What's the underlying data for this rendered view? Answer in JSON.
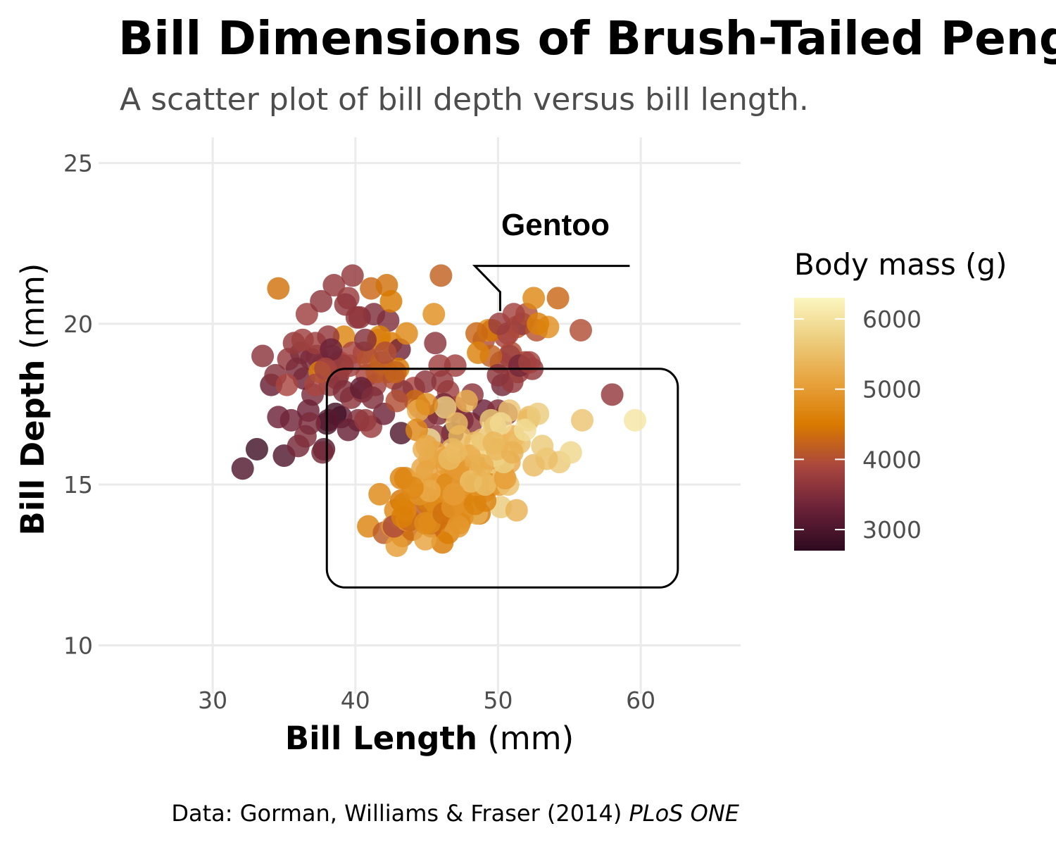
{
  "colors": {
    "background": "#ffffff",
    "grid": "#ebebeb",
    "gradient": [
      "#2d0a1f",
      "#6b2238",
      "#a8453f",
      "#d97a00",
      "#e8a33e",
      "#eccc7c",
      "#fbf6c0"
    ]
  },
  "chart_data": {
    "type": "scatter",
    "title": "Bill Dimensions of Brush-Tailed Peng",
    "subtitle": "A scatter plot of bill depth versus bill length.",
    "xlabel": {
      "bold": "Bill Length",
      "rest": " (mm)"
    },
    "ylabel": {
      "bold": "Bill Depth",
      "rest": " (mm)"
    },
    "xlim": [
      22,
      67
    ],
    "ylim": [
      8.5,
      25.8
    ],
    "xticks": [
      30,
      40,
      50,
      60
    ],
    "yticks": [
      10,
      15,
      20,
      25
    ],
    "grid": true,
    "color_scale": {
      "title": "Body mass (g)",
      "min": 2700,
      "max": 6300,
      "ticks": [
        3000,
        4000,
        5000,
        6000
      ]
    },
    "annotation": {
      "label": "Gentoo",
      "box": {
        "x0": 38,
        "x1": 62.6,
        "y0": 11.8,
        "y1": 18.6
      },
      "leader_x": 50,
      "leader_y": 21.8
    },
    "caption": {
      "text": "Data: Gorman, Williams & Fraser (2014) ",
      "italic": "PLoS ONE"
    },
    "points": [
      [
        32.1,
        15.5,
        3050
      ],
      [
        33.1,
        16.1,
        2900
      ],
      [
        35.0,
        15.9,
        3050
      ],
      [
        36.0,
        16.2,
        3400
      ],
      [
        37.8,
        16.1,
        3100
      ],
      [
        34.6,
        17.1,
        3300
      ],
      [
        35.5,
        17.0,
        3350
      ],
      [
        36.5,
        16.5,
        3500
      ],
      [
        38.0,
        16.9,
        2950
      ],
      [
        39.0,
        17.1,
        3200
      ],
      [
        40.2,
        17.0,
        3500
      ],
      [
        41.1,
        16.8,
        3750
      ],
      [
        42.0,
        17.2,
        3300
      ],
      [
        43.2,
        16.6,
        3050
      ],
      [
        37.0,
        17.8,
        3450
      ],
      [
        38.6,
        17.2,
        2900
      ],
      [
        39.7,
        17.7,
        3600
      ],
      [
        40.5,
        17.9,
        3550
      ],
      [
        41.4,
        18.1,
        3800
      ],
      [
        36.4,
        18.3,
        3300
      ],
      [
        34.1,
        18.1,
        3250
      ],
      [
        35.3,
        18.9,
        3700
      ],
      [
        36.2,
        19.1,
        3500
      ],
      [
        37.3,
        19.0,
        3600
      ],
      [
        38.8,
        18.4,
        3900
      ],
      [
        39.6,
        18.7,
        3800
      ],
      [
        40.6,
        19.1,
        3950
      ],
      [
        41.6,
        19.5,
        4300
      ],
      [
        42.5,
        19.4,
        4500
      ],
      [
        43.1,
        19.2,
        3350
      ],
      [
        34.4,
        18.4,
        3550
      ],
      [
        35.9,
        18.6,
        3450
      ],
      [
        37.7,
        18.7,
        3700
      ],
      [
        38.2,
        18.1,
        3650
      ],
      [
        39.2,
        19.6,
        4650
      ],
      [
        40.8,
        18.4,
        3900
      ],
      [
        42.2,
        18.5,
        4300
      ],
      [
        44.1,
        18.0,
        3900
      ],
      [
        45.0,
        17.1,
        3600
      ],
      [
        45.8,
        17.2,
        3500
      ],
      [
        46.5,
        17.9,
        3800
      ],
      [
        47.0,
        17.4,
        3900
      ],
      [
        48.1,
        16.9,
        3600
      ],
      [
        46.2,
        17.5,
        3400
      ],
      [
        44.5,
        17.4,
        4200
      ],
      [
        33.5,
        19.0,
        3600
      ],
      [
        34.6,
        21.1,
        4400
      ],
      [
        35.7,
        19.4,
        3700
      ],
      [
        36.6,
        20.3,
        3800
      ],
      [
        37.6,
        20.7,
        3650
      ],
      [
        38.5,
        21.2,
        3700
      ],
      [
        39.5,
        20.8,
        3750
      ],
      [
        40.3,
        20.2,
        3650
      ],
      [
        41.3,
        20.3,
        3500
      ],
      [
        42.3,
        20.1,
        3500
      ],
      [
        39.8,
        21.5,
        3700
      ],
      [
        41.1,
        21.1,
        4300
      ],
      [
        42.2,
        21.2,
        4400
      ],
      [
        42.5,
        20.7,
        4500
      ],
      [
        41.7,
        19.6,
        4600
      ],
      [
        43.0,
        18.6,
        4500
      ],
      [
        43.6,
        19.7,
        4700
      ],
      [
        45.5,
        20.3,
        4800
      ],
      [
        45.6,
        19.4,
        3600
      ],
      [
        46.0,
        21.5,
        4200
      ],
      [
        47.0,
        18.7,
        3800
      ],
      [
        38.9,
        18.8,
        3950
      ],
      [
        39.3,
        20.6,
        3650
      ],
      [
        40.1,
        20.2,
        3650
      ],
      [
        36.9,
        18.9,
        3450
      ],
      [
        37.2,
        19.4,
        3800
      ],
      [
        38.1,
        19.6,
        3700
      ],
      [
        38.4,
        19.0,
        3600
      ],
      [
        38.7,
        18.3,
        3600
      ],
      [
        39.2,
        17.9,
        3500
      ],
      [
        39.8,
        19.1,
        3900
      ],
      [
        40.9,
        18.9,
        4050
      ],
      [
        41.5,
        18.5,
        4100
      ],
      [
        42.7,
        18.3,
        4000
      ],
      [
        43.3,
        17.9,
        3600
      ],
      [
        45.9,
        18.7,
        3800
      ],
      [
        46.1,
        18.2,
        3700
      ],
      [
        46.7,
        17.3,
        3600
      ],
      [
        47.5,
        17.0,
        3450
      ],
      [
        48.2,
        17.8,
        3600
      ],
      [
        49.0,
        17.3,
        3300
      ],
      [
        49.8,
        16.9,
        3650
      ],
      [
        50.0,
        17.3,
        3500
      ],
      [
        50.3,
        18.1,
        3400
      ],
      [
        50.6,
        17.2,
        3600
      ],
      [
        51.0,
        18.2,
        3700
      ],
      [
        51.4,
        18.5,
        3750
      ],
      [
        51.9,
        18.8,
        3800
      ],
      [
        52.4,
        18.6,
        3700
      ],
      [
        50.5,
        19.6,
        3900
      ],
      [
        50.9,
        19.1,
        4000
      ],
      [
        51.3,
        19.9,
        4100
      ],
      [
        51.7,
        20.0,
        3700
      ],
      [
        52.0,
        20.3,
        4000
      ],
      [
        52.7,
        19.8,
        4050
      ],
      [
        53.5,
        19.9,
        4800
      ],
      [
        49.0,
        19.5,
        4000
      ],
      [
        49.3,
        19.8,
        4800
      ],
      [
        49.6,
        19.8,
        4400
      ],
      [
        50.2,
        18.8,
        3850
      ],
      [
        50.7,
        19.7,
        3900
      ],
      [
        50.8,
        19.0,
        3800
      ],
      [
        51.5,
        18.7,
        3400
      ],
      [
        52.2,
        18.8,
        3850
      ],
      [
        49.5,
        19.0,
        4200
      ],
      [
        48.5,
        19.7,
        4300
      ],
      [
        48.6,
        19.1,
        4600
      ],
      [
        50.1,
        20.0,
        3750
      ],
      [
        51.1,
        20.3,
        3850
      ],
      [
        52.8,
        20.0,
        4600
      ],
      [
        54.2,
        20.8,
        4300
      ],
      [
        55.8,
        19.8,
        4000
      ],
      [
        58.0,
        17.8,
        3700
      ],
      [
        52.5,
        20.8,
        4700
      ],
      [
        50.0,
        18.4,
        3600
      ],
      [
        46.8,
        16.6,
        3000
      ],
      [
        45.7,
        16.5,
        3600
      ],
      [
        44.9,
        18.2,
        3600
      ],
      [
        44.2,
        17.6,
        4300
      ],
      [
        36.7,
        17.3,
        3300
      ],
      [
        37.5,
        18.5,
        4600
      ],
      [
        35.2,
        18.1,
        3900
      ],
      [
        40.4,
        18.0,
        3200
      ],
      [
        39.1,
        18.7,
        3750
      ],
      [
        38.3,
        19.2,
        3300
      ],
      [
        37.9,
        18.6,
        3900
      ],
      [
        36.3,
        19.5,
        3800
      ],
      [
        41.8,
        18.8,
        4200
      ],
      [
        40.7,
        19.5,
        3550
      ],
      [
        42.9,
        17.6,
        4000
      ],
      [
        38.1,
        17.0,
        3100
      ],
      [
        39.5,
        16.7,
        3250
      ],
      [
        37.7,
        16.0,
        3400
      ],
      [
        36.8,
        16.9,
        3450
      ],
      [
        40.7,
        17.0,
        3700
      ],
      [
        37.2,
        18.1,
        3900
      ],
      [
        42.1,
        19.1,
        4000
      ],
      [
        42.8,
        18.5,
        4250
      ],
      [
        41.2,
        17.7,
        3500
      ],
      [
        46.1,
        13.2,
        4500
      ],
      [
        50.0,
        16.3,
        5700
      ],
      [
        48.7,
        14.1,
        4450
      ],
      [
        50.0,
        15.2,
        5700
      ],
      [
        47.6,
        14.5,
        5400
      ],
      [
        46.5,
        13.5,
        4550
      ],
      [
        45.4,
        14.6,
        4800
      ],
      [
        46.7,
        15.3,
        5200
      ],
      [
        43.3,
        13.4,
        4400
      ],
      [
        46.8,
        15.4,
        5150
      ],
      [
        40.9,
        13.7,
        4650
      ],
      [
        49.0,
        16.1,
        5550
      ],
      [
        45.5,
        13.7,
        4650
      ],
      [
        48.4,
        14.6,
        5850
      ],
      [
        45.8,
        14.6,
        4200
      ],
      [
        49.3,
        15.7,
        5850
      ],
      [
        42.0,
        13.5,
        4150
      ],
      [
        49.2,
        15.2,
        6300
      ],
      [
        46.2,
        14.5,
        4800
      ],
      [
        48.7,
        15.1,
        5350
      ],
      [
        50.2,
        14.3,
        5700
      ],
      [
        45.1,
        14.5,
        5000
      ],
      [
        46.5,
        14.5,
        4400
      ],
      [
        46.3,
        15.8,
        5050
      ],
      [
        42.9,
        13.1,
        5000
      ],
      [
        46.1,
        15.1,
        5100
      ],
      [
        44.5,
        14.3,
        4100
      ],
      [
        47.8,
        15.0,
        5650
      ],
      [
        48.2,
        14.3,
        4600
      ],
      [
        50.0,
        15.3,
        5550
      ],
      [
        47.3,
        15.3,
        5250
      ],
      [
        42.8,
        14.2,
        4700
      ],
      [
        45.1,
        14.5,
        5050
      ],
      [
        59.6,
        17.0,
        6050
      ],
      [
        49.1,
        14.8,
        5150
      ],
      [
        48.4,
        16.3,
        5400
      ],
      [
        42.6,
        13.7,
        4950
      ],
      [
        44.4,
        17.3,
        5250
      ],
      [
        44.0,
        13.6,
        4350
      ],
      [
        48.7,
        15.7,
        5350
      ],
      [
        42.7,
        13.7,
        3950
      ],
      [
        49.6,
        16.0,
        5700
      ],
      [
        45.3,
        13.7,
        4300
      ],
      [
        49.6,
        15.0,
        4750
      ],
      [
        50.5,
        15.9,
        5550
      ],
      [
        43.6,
        13.9,
        4900
      ],
      [
        45.5,
        13.9,
        4200
      ],
      [
        50.5,
        15.9,
        5400
      ],
      [
        44.9,
        13.3,
        5100
      ],
      [
        45.2,
        15.8,
        5300
      ],
      [
        46.6,
        14.2,
        4850
      ],
      [
        48.5,
        14.1,
        5300
      ],
      [
        45.1,
        14.4,
        4400
      ],
      [
        50.1,
        15.0,
        5000
      ],
      [
        46.5,
        14.4,
        4900
      ],
      [
        45.0,
        15.4,
        5050
      ],
      [
        43.8,
        13.9,
        4300
      ],
      [
        45.5,
        15.0,
        5000
      ],
      [
        43.2,
        14.5,
        4450
      ],
      [
        50.4,
        15.3,
        5550
      ],
      [
        45.3,
        13.8,
        4200
      ],
      [
        46.2,
        14.9,
        5300
      ],
      [
        45.7,
        13.9,
        4400
      ],
      [
        54.3,
        15.7,
        5650
      ],
      [
        45.8,
        14.2,
        4700
      ],
      [
        49.8,
        16.8,
        5700
      ],
      [
        46.2,
        14.4,
        4650
      ],
      [
        49.5,
        16.2,
        5800
      ],
      [
        43.5,
        14.2,
        4700
      ],
      [
        50.7,
        15.0,
        5550
      ],
      [
        47.7,
        15.0,
        4750
      ],
      [
        46.4,
        15.6,
        5000
      ],
      [
        48.2,
        15.6,
        5100
      ],
      [
        46.5,
        14.8,
        5200
      ],
      [
        46.4,
        15.0,
        4700
      ],
      [
        48.6,
        16.0,
        5800
      ],
      [
        47.5,
        14.2,
        4600
      ],
      [
        51.1,
        16.3,
        6000
      ],
      [
        45.2,
        13.8,
        4750
      ],
      [
        45.2,
        16.4,
        5950
      ],
      [
        49.1,
        14.5,
        4625
      ],
      [
        52.5,
        15.6,
        5450
      ],
      [
        47.4,
        14.6,
        4725
      ],
      [
        50.0,
        15.9,
        5350
      ],
      [
        44.9,
        13.8,
        4750
      ],
      [
        50.8,
        17.3,
        5600
      ],
      [
        43.4,
        14.4,
        4600
      ],
      [
        51.3,
        14.2,
        5300
      ],
      [
        47.5,
        14.0,
        4875
      ],
      [
        52.1,
        17.0,
        5550
      ],
      [
        47.5,
        15.0,
        4950
      ],
      [
        52.2,
        17.1,
        5400
      ],
      [
        45.5,
        14.5,
        4750
      ],
      [
        49.5,
        16.1,
        5650
      ],
      [
        44.5,
        14.7,
        4850
      ],
      [
        50.8,
        15.7,
        5200
      ],
      [
        49.4,
        15.8,
        4925
      ],
      [
        46.9,
        14.6,
        4875
      ],
      [
        48.4,
        14.4,
        4625
      ],
      [
        51.1,
        16.5,
        5250
      ],
      [
        48.5,
        15.0,
        4850
      ],
      [
        55.9,
        17.0,
        5600
      ],
      [
        47.2,
        15.5,
        4975
      ],
      [
        49.1,
        15.0,
        5500
      ],
      [
        47.3,
        13.8,
        4725
      ],
      [
        46.8,
        16.1,
        5500
      ],
      [
        41.7,
        14.7,
        4700
      ],
      [
        53.4,
        15.8,
        5500
      ],
      [
        43.3,
        14.0,
        4575
      ],
      [
        48.1,
        15.1,
        5500
      ],
      [
        50.5,
        15.2,
        5000
      ],
      [
        49.8,
        15.9,
        5950
      ],
      [
        43.5,
        15.2,
        4650
      ],
      [
        51.5,
        16.3,
        5500
      ],
      [
        46.2,
        14.1,
        4375
      ],
      [
        55.1,
        16.0,
        5850
      ],
      [
        48.8,
        16.2,
        6000
      ],
      [
        47.2,
        13.7,
        4925
      ],
      [
        46.8,
        14.3,
        4850
      ],
      [
        50.4,
        15.7,
        5750
      ],
      [
        45.2,
        14.8,
        5200
      ],
      [
        49.9,
        16.1,
        5400
      ],
      [
        44.3,
        16.7,
        4700
      ],
      [
        45.6,
        16.0,
        5100
      ],
      [
        48.0,
        15.9,
        5200
      ],
      [
        46.9,
        15.6,
        4950
      ],
      [
        45.0,
        16.2,
        5150
      ],
      [
        44.7,
        15.5,
        5150
      ],
      [
        44.8,
        16.1,
        5250
      ],
      [
        46.3,
        17.4,
        5750
      ],
      [
        47.1,
        16.9,
        5500
      ],
      [
        48.9,
        16.4,
        5600
      ],
      [
        51.9,
        16.7,
        5950
      ],
      [
        53.1,
        16.2,
        5650
      ],
      [
        52.8,
        17.2,
        5700
      ],
      [
        47.8,
        17.6,
        5300
      ],
      [
        49.5,
        17.0,
        5650
      ],
      [
        47.0,
        16.0,
        5400
      ],
      [
        48.9,
        15.6,
        5300
      ],
      [
        44.1,
        15.0,
        5100
      ],
      [
        46.9,
        14.7,
        5000
      ],
      [
        43.2,
        15.2,
        4650
      ],
      [
        45.0,
        17.5,
        4800
      ],
      [
        50.2,
        16.9,
        5900
      ],
      [
        51.0,
        16.0,
        5300
      ],
      [
        47.3,
        16.5,
        5400
      ],
      [
        44.0,
        14.9,
        4700
      ],
      [
        46.6,
        15.8,
        5450
      ],
      [
        49.7,
        16.3,
        5400
      ]
    ]
  }
}
